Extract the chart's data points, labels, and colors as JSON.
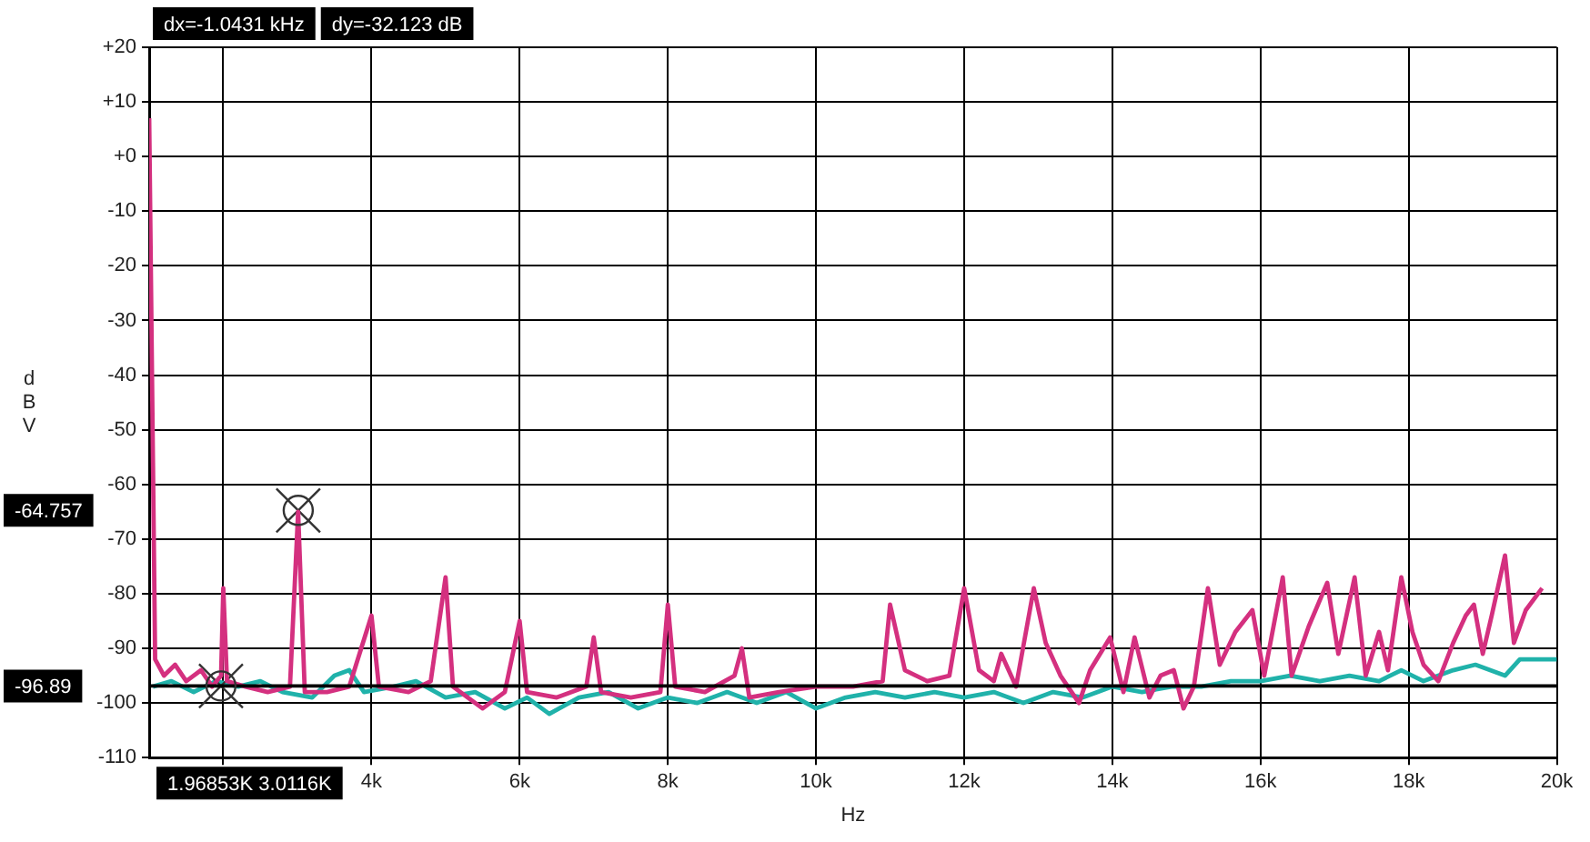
{
  "chart_data": {
    "type": "line",
    "xlabel": "Hz",
    "ylabel": "dBV",
    "xlim": [
      1000,
      20000
    ],
    "ylim": [
      -110,
      20
    ],
    "xticks": [
      {
        "value": 2000,
        "label": null
      },
      {
        "value": 4000,
        "label": "4k"
      },
      {
        "value": 6000,
        "label": "6k"
      },
      {
        "value": 8000,
        "label": "8k"
      },
      {
        "value": 10000,
        "label": "10k"
      },
      {
        "value": 12000,
        "label": "12k"
      },
      {
        "value": 14000,
        "label": "14k"
      },
      {
        "value": 16000,
        "label": "16k"
      },
      {
        "value": 18000,
        "label": "18k"
      },
      {
        "value": 20000,
        "label": "20k"
      }
    ],
    "yticks": [
      {
        "value": 20,
        "label": "+20"
      },
      {
        "value": 10,
        "label": "+10"
      },
      {
        "value": 0,
        "label": "+0"
      },
      -10,
      -20,
      -30,
      -40,
      -50,
      -60,
      -70,
      -80,
      -90,
      -100,
      -110
    ],
    "grid": true,
    "legend": false,
    "line_style": "solid",
    "ref_lines": [
      {
        "axis": "y",
        "value": -96.89,
        "color": "#000000"
      }
    ],
    "annotations": [
      "dx=-1.0431 kHz",
      "dy=-32.123 dB",
      "1.96853K 3.0116K",
      "-64.757",
      "-96.89"
    ],
    "series": [
      {
        "color": "#d4307f",
        "x": [
          1000,
          1080,
          1200,
          1350,
          1500,
          1700,
          1850,
          1970,
          2000,
          2050,
          2300,
          2600,
          2900,
          3010,
          3100,
          3400,
          3700,
          4000,
          4100,
          4500,
          4800,
          5000,
          5100,
          5500,
          5800,
          6000,
          6100,
          6500,
          6900,
          7000,
          7100,
          7500,
          7900,
          8000,
          8100,
          8500,
          8900,
          9000,
          9100,
          9500,
          10000,
          10500,
          10900,
          11000,
          11200,
          11500,
          11800,
          12000,
          12200,
          12400,
          12500,
          12700,
          12940,
          13100,
          13300,
          13550,
          13700,
          13970,
          14150,
          14300,
          14500,
          14650,
          14830,
          14960,
          15100,
          15290,
          15450,
          15660,
          15890,
          16050,
          16300,
          16420,
          16650,
          16900,
          17050,
          17270,
          17420,
          17600,
          17720,
          17900,
          18050,
          18200,
          18400,
          18600,
          18770,
          18880,
          19000,
          19120,
          19300,
          19420,
          19580,
          19800
        ],
        "values": [
          7,
          -92,
          -95,
          -93,
          -96,
          -94,
          -97,
          -95,
          -79,
          -96,
          -97,
          -98,
          -97,
          -65,
          -98,
          -98,
          -97,
          -84,
          -97,
          -98,
          -96,
          -77,
          -97,
          -101,
          -98,
          -85,
          -98,
          -99,
          -97,
          -88,
          -98,
          -99,
          -98,
          -82,
          -97,
          -98,
          -95,
          -90,
          -99,
          -98,
          -97,
          -97,
          -96,
          -82,
          -94,
          -96,
          -95,
          -79,
          -94,
          -96,
          -91,
          -97,
          -79,
          -89,
          -95,
          -100,
          -94,
          -88,
          -98,
          -88,
          -99,
          -95,
          -94,
          -101,
          -97,
          -79,
          -93,
          -87,
          -83,
          -95,
          -77,
          -95,
          -86,
          -78,
          -91,
          -77,
          -95,
          -87,
          -94,
          -77,
          -87,
          -93,
          -96,
          -89,
          -84,
          -82,
          -91,
          -84,
          -73,
          -89,
          -83,
          -79
        ]
      },
      {
        "type": "scatter",
        "color": "#333333",
        "x": [
          3011.6,
          1968.53
        ],
        "values": [
          -64.757,
          -96.89
        ]
      },
      {
        "color": "#20b2aa",
        "x": [
          1050,
          1300,
          1600,
          1900,
          2200,
          2500,
          2800,
          3200,
          3500,
          3700,
          3900,
          4300,
          4600,
          5000,
          5400,
          5800,
          6100,
          6400,
          6800,
          7200,
          7600,
          8000,
          8400,
          8800,
          9200,
          9600,
          10000,
          10400,
          10800,
          11200,
          11600,
          12000,
          12400,
          12800,
          13200,
          13600,
          14000,
          14400,
          14800,
          15200,
          15600,
          16000,
          16400,
          16800,
          17200,
          17600,
          17900,
          18200,
          18600,
          18900,
          19300,
          19500,
          20000
        ],
        "values": [
          -97,
          -96,
          -98,
          -96,
          -97,
          -96,
          -98,
          -99,
          -95,
          -94,
          -98,
          -97,
          -96,
          -99,
          -98,
          -101,
          -99,
          -102,
          -99,
          -98,
          -101,
          -99,
          -100,
          -98,
          -100,
          -98,
          -101,
          -99,
          -98,
          -99,
          -98,
          -99,
          -98,
          -100,
          -98,
          -99,
          -97,
          -98,
          -97,
          -97,
          -96,
          -96,
          -95,
          -96,
          -95,
          -96,
          -94,
          -96,
          -94,
          -93,
          -95,
          -92,
          -92
        ]
      }
    ]
  }
}
